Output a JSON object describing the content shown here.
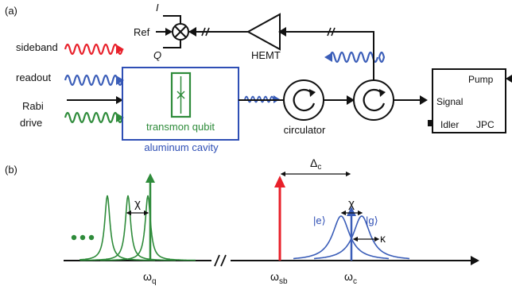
{
  "panel_a": {
    "label": "(a)",
    "inputs": {
      "sideband": "sideband",
      "readout": "readout",
      "rabi_line1": "Rabi",
      "rabi_line2": "drive"
    },
    "mixer": {
      "i": "I",
      "ref": "Ref",
      "q": "Q"
    },
    "amplifier": "HEMT",
    "qubit_label": "transmon qubit",
    "cavity_label": "aluminum cavity",
    "circulator_label": "circulator",
    "jpc": {
      "pump": "Pump",
      "signal": "Signal",
      "idler": "Idler",
      "name": "JPC"
    }
  },
  "panel_b": {
    "label": "(b)",
    "chi_left": "χ",
    "chi_right": "χ",
    "delta": "Δ",
    "delta_sub": "c",
    "state_e": "|e⟩",
    "state_g": "|g⟩",
    "kappa": "κ",
    "omega": "ω",
    "sub_q": "q",
    "sub_sb": "sb",
    "sub_c": "c"
  },
  "colors": {
    "red": "#e8202a",
    "blue": "#3a5db8",
    "green": "#2e8b3a",
    "black": "#111111"
  }
}
